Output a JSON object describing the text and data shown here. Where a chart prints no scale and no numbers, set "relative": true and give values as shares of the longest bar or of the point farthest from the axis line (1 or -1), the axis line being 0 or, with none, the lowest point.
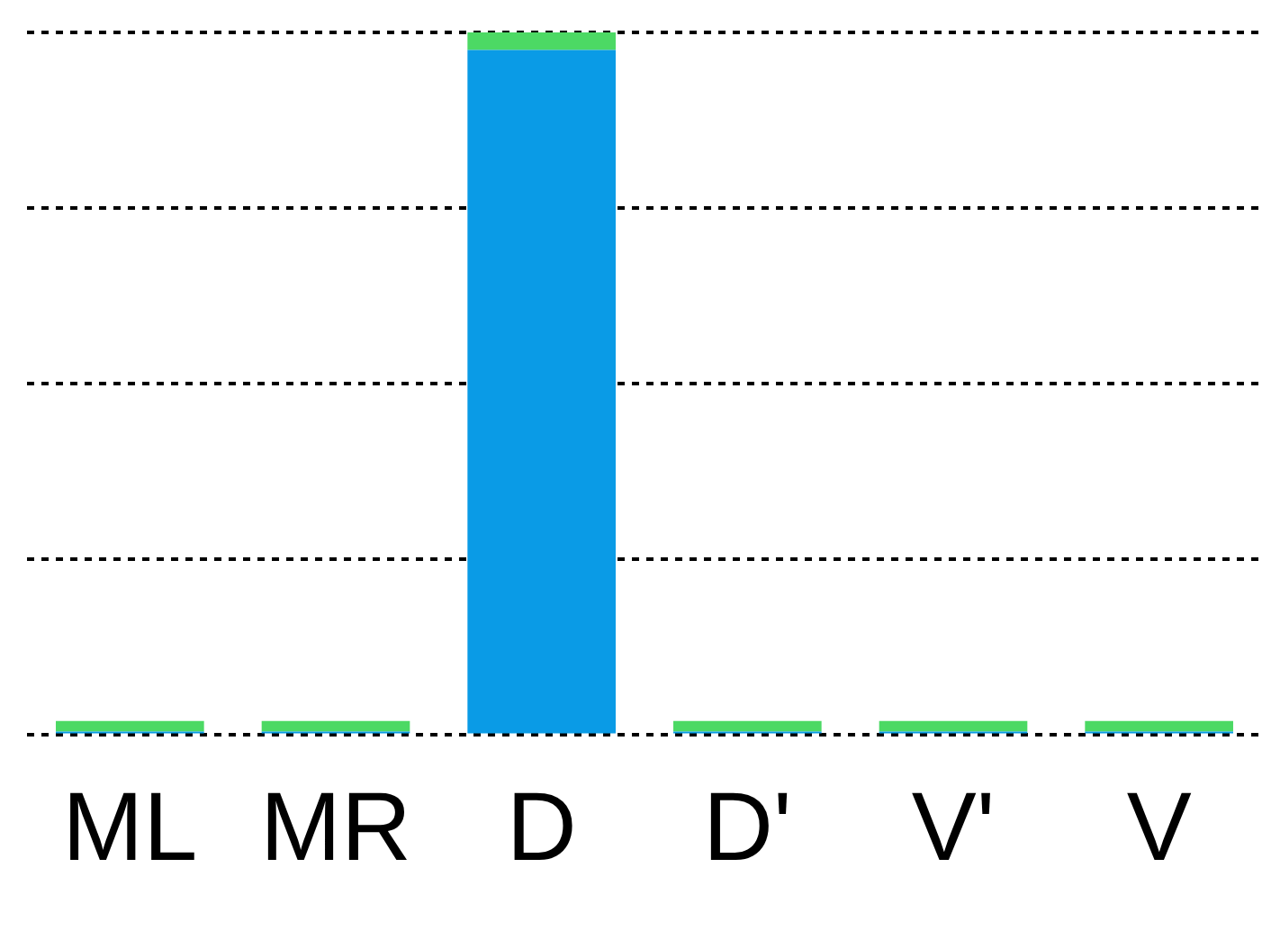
{
  "chart_data": {
    "type": "bar",
    "relative": true,
    "stacked": true,
    "grid": "y",
    "categories": [
      "ML",
      "MR",
      "D",
      "D'",
      "V'",
      "V"
    ],
    "series": [
      {
        "color": "#0a9be6",
        "values": [
          0.005,
          0.005,
          0.975,
          0.005,
          0.005,
          0.005
        ]
      },
      {
        "color": "#4cd964",
        "values": [
          0.015,
          0.015,
          0.025,
          0.015,
          0.015,
          0.015
        ]
      }
    ]
  }
}
